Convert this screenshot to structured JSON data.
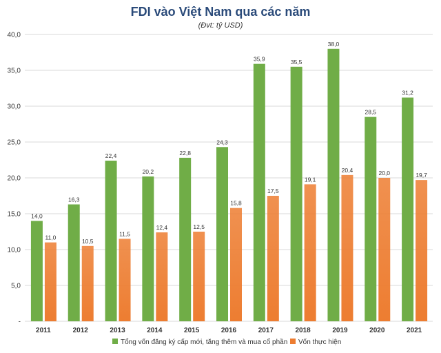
{
  "chart_data": {
    "type": "bar",
    "title": "FDI vào Việt Nam qua các năm",
    "subtitle": "(Đvt: tỷ USD)",
    "categories": [
      "2011",
      "2012",
      "2013",
      "2014",
      "2015",
      "2016",
      "2017",
      "2018",
      "2019",
      "2020",
      "2021"
    ],
    "series": [
      {
        "name": "Tổng vốn đăng ký cấp mới, tăng thêm và mua cổ phần",
        "color": "#70ad47",
        "values": [
          14.0,
          16.3,
          22.4,
          20.2,
          22.8,
          24.3,
          35.9,
          35.5,
          38.0,
          28.5,
          31.2
        ],
        "labels": [
          "14,0",
          "16,3",
          "22,4",
          "20,2",
          "22,8",
          "24,3",
          "35,9",
          "35,5",
          "38,0",
          "28,5",
          "31,2"
        ]
      },
      {
        "name": "Vốn thực hiện",
        "color": "#ed7d31",
        "values": [
          11.0,
          10.5,
          11.5,
          12.4,
          12.5,
          15.8,
          17.5,
          19.1,
          20.4,
          20.0,
          19.7
        ],
        "labels": [
          "11,0",
          "10,5",
          "11,5",
          "12,4",
          "12,5",
          "15,8",
          "17,5",
          "19,1",
          "20,4",
          "20,0",
          "19,7"
        ]
      }
    ],
    "ylim": [
      0,
      40
    ],
    "yticks": [
      0,
      5,
      10,
      15,
      20,
      25,
      30,
      35,
      40
    ],
    "ytick_labels": [
      "-",
      "5,0",
      "10,0",
      "15,0",
      "20,0",
      "25,0",
      "30,0",
      "35,0",
      "40,0"
    ],
    "grid": true,
    "legend_position": "bottom"
  }
}
